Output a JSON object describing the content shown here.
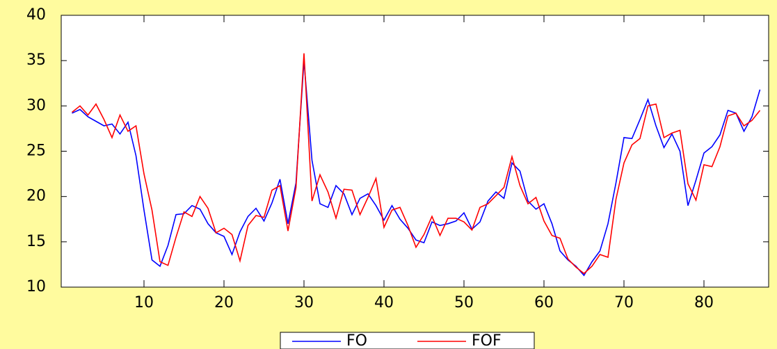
{
  "chart_data": {
    "type": "line",
    "x": [
      1,
      2,
      3,
      4,
      5,
      6,
      7,
      8,
      9,
      10,
      11,
      12,
      13,
      14,
      15,
      16,
      17,
      18,
      19,
      20,
      21,
      22,
      23,
      24,
      25,
      26,
      27,
      28,
      29,
      30,
      31,
      32,
      33,
      34,
      35,
      36,
      37,
      38,
      39,
      40,
      41,
      42,
      43,
      44,
      45,
      46,
      47,
      48,
      49,
      50,
      51,
      52,
      53,
      54,
      55,
      56,
      57,
      58,
      59,
      60,
      61,
      62,
      63,
      64,
      65,
      66,
      67,
      68,
      69,
      70,
      71,
      72,
      73,
      74,
      75,
      76,
      77,
      78,
      79,
      80,
      81,
      82,
      83,
      84,
      85,
      86,
      87
    ],
    "series": [
      {
        "name": "FO",
        "color": "#0000ff",
        "values": [
          29.2,
          29.6,
          28.8,
          28.3,
          27.8,
          28.0,
          26.9,
          28.2,
          24.5,
          18.5,
          13.0,
          12.3,
          14.6,
          18.0,
          18.1,
          19.0,
          18.6,
          17.0,
          16.0,
          15.6,
          13.6,
          16.1,
          17.8,
          18.7,
          17.3,
          19.3,
          21.9,
          17.0,
          21.5,
          35.0,
          24.0,
          19.2,
          18.8,
          21.2,
          20.3,
          18.0,
          19.8,
          20.3,
          19.0,
          17.4,
          19.0,
          17.5,
          16.5,
          15.2,
          14.9,
          17.2,
          16.8,
          17.0,
          17.3,
          18.2,
          16.4,
          17.2,
          19.5,
          20.5,
          19.8,
          23.7,
          22.8,
          19.5,
          18.6,
          19.2,
          17.0,
          14.0,
          13.0,
          12.3,
          11.3,
          12.8,
          14.0,
          17.0,
          21.5,
          26.5,
          26.4,
          28.5,
          30.7,
          27.8,
          25.4,
          26.9,
          25.0,
          19.0,
          21.8,
          24.8,
          25.5,
          26.8,
          29.5,
          29.2,
          27.2,
          28.8,
          31.8
        ]
      },
      {
        "name": "FOF",
        "color": "#ff0000",
        "values": [
          29.3,
          30.0,
          29.0,
          30.2,
          28.5,
          26.5,
          29.0,
          27.2,
          27.8,
          22.5,
          18.5,
          12.8,
          12.4,
          15.5,
          18.3,
          17.8,
          20.0,
          18.7,
          16.0,
          16.5,
          15.8,
          12.9,
          16.8,
          17.9,
          17.7,
          20.7,
          21.2,
          16.2,
          21.0,
          35.8,
          19.5,
          22.4,
          20.5,
          17.6,
          20.8,
          20.7,
          18.0,
          19.9,
          22.0,
          16.6,
          18.5,
          18.8,
          16.8,
          14.4,
          15.8,
          17.8,
          15.7,
          17.6,
          17.6,
          17.2,
          16.3,
          18.8,
          19.2,
          20.1,
          21.0,
          24.4,
          21.2,
          19.2,
          19.9,
          17.3,
          15.7,
          15.4,
          13.1,
          12.2,
          11.5,
          12.3,
          13.6,
          13.3,
          19.7,
          23.7,
          25.7,
          26.4,
          30.0,
          30.2,
          26.5,
          27.0,
          27.3,
          21.4,
          19.6,
          23.5,
          23.3,
          25.5,
          28.9,
          29.2,
          27.8,
          28.4,
          29.5
        ]
      }
    ],
    "xlim": [
      0,
      88
    ],
    "xticks": [
      10,
      20,
      30,
      40,
      50,
      60,
      70,
      80
    ],
    "ylim": [
      10,
      40
    ],
    "yticks": [
      10,
      15,
      20,
      25,
      30,
      35,
      40
    ],
    "grid": false
  }
}
